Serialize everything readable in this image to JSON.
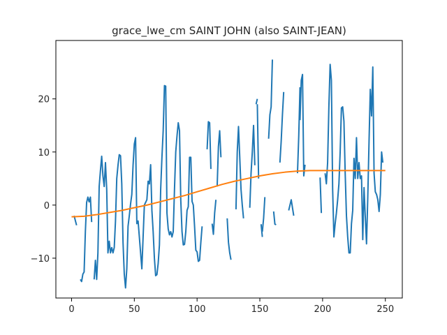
{
  "chart_data": {
    "type": "line",
    "title": "grace_lwe_cm SAINT JOHN (also SAINT-JEAN)",
    "xlabel": "",
    "ylabel": "",
    "xlim": [
      -12.5,
      263.5
    ],
    "ylim": [
      -17.5,
      31
    ],
    "xticks": [
      0,
      50,
      100,
      150,
      200,
      250
    ],
    "yticks": [
      -10,
      0,
      10,
      20
    ],
    "grid": false,
    "series": [
      {
        "color": "#1f77b4",
        "segments": [
          [
            [
              2,
              -2
            ],
            [
              4,
              -3.8
            ]
          ],
          [
            [
              7,
              -14
            ],
            [
              8,
              -14.4
            ],
            [
              9,
              -13
            ],
            [
              10,
              -12.6
            ],
            [
              11,
              -5
            ],
            [
              12,
              0.5
            ],
            [
              13,
              1.5
            ],
            [
              14,
              0.6
            ],
            [
              15,
              1.5
            ],
            [
              16,
              -3.2
            ]
          ],
          [
            [
              18,
              -14
            ],
            [
              19,
              -10.4
            ],
            [
              20,
              -14
            ],
            [
              21,
              -9
            ],
            [
              22,
              3.5
            ],
            [
              23,
              6.5
            ],
            [
              24,
              9.2
            ],
            [
              25,
              5.5
            ],
            [
              26,
              3.5
            ],
            [
              27,
              8
            ],
            [
              28,
              3
            ],
            [
              29,
              -9
            ],
            [
              30,
              -6.8
            ],
            [
              31,
              -9
            ],
            [
              32,
              -8
            ],
            [
              33,
              -9
            ],
            [
              34,
              -8
            ],
            [
              35,
              -3
            ],
            [
              36,
              5
            ],
            [
              37,
              7.5
            ],
            [
              38,
              9.5
            ],
            [
              39,
              9.3
            ],
            [
              40,
              4
            ],
            [
              41,
              -7
            ],
            [
              42,
              -13
            ],
            [
              43,
              -15.6
            ],
            [
              44,
              -12
            ],
            [
              45,
              -4
            ],
            [
              46,
              -2
            ],
            [
              47,
              0.2
            ],
            [
              48,
              2
            ],
            [
              49,
              7.5
            ],
            [
              50,
              11.5
            ],
            [
              51,
              12.7
            ],
            [
              52,
              -3.5
            ],
            [
              53,
              -3
            ],
            [
              54,
              -6
            ],
            [
              55,
              -9
            ],
            [
              56,
              -12
            ],
            [
              57,
              -6
            ],
            [
              58,
              0
            ],
            [
              59,
              0.5
            ],
            [
              60,
              1
            ],
            [
              61,
              4.5
            ],
            [
              62,
              4
            ],
            [
              63,
              7.6
            ],
            [
              64,
              -1
            ],
            [
              65,
              -5
            ],
            [
              66,
              -10
            ],
            [
              67,
              -13.3
            ],
            [
              68,
              -13.1
            ],
            [
              69,
              -11
            ],
            [
              70,
              -7.5
            ],
            [
              71,
              3
            ],
            [
              72,
              9
            ],
            [
              73,
              14
            ],
            [
              74,
              22.5
            ],
            [
              75,
              22.4
            ],
            [
              76,
              -1.5
            ],
            [
              77,
              -4.5
            ],
            [
              78,
              -5.6
            ],
            [
              79,
              -5
            ],
            [
              80,
              -6
            ],
            [
              81,
              -5
            ],
            [
              82,
              3
            ],
            [
              83,
              10
            ],
            [
              84,
              13
            ],
            [
              85,
              15.5
            ],
            [
              86,
              14
            ],
            [
              87,
              1
            ],
            [
              88,
              -5
            ],
            [
              89,
              -7.5
            ],
            [
              90,
              -7.4
            ],
            [
              91,
              -5
            ],
            [
              92,
              -1
            ],
            [
              93,
              -0.3
            ],
            [
              94,
              9
            ],
            [
              95,
              9
            ],
            [
              96,
              0.7
            ],
            [
              97,
              0
            ],
            [
              98,
              -4
            ],
            [
              99,
              -8.5
            ],
            [
              100,
              -8.8
            ],
            [
              101,
              -10.6
            ],
            [
              102,
              -10.4
            ],
            [
              103,
              -7
            ],
            [
              104,
              -4
            ]
          ],
          [
            [
              108,
              10.5
            ],
            [
              109,
              15.7
            ],
            [
              110,
              15.5
            ],
            [
              111,
              6.8
            ]
          ],
          [
            [
              112,
              -3.5
            ],
            [
              113,
              -5.5
            ],
            [
              114,
              -1.5
            ],
            [
              115,
              1
            ]
          ],
          [
            [
              116,
              3.5
            ],
            [
              117,
              11
            ],
            [
              118,
              14
            ],
            [
              119,
              9
            ]
          ],
          [
            [
              124,
              -2.5
            ],
            [
              125,
              -7
            ],
            [
              126,
              -9
            ],
            [
              127,
              -10.3
            ]
          ],
          [
            [
              131,
              -0.8
            ],
            [
              132,
              10
            ],
            [
              133,
              14.8
            ],
            [
              134,
              9
            ],
            [
              135,
              3
            ],
            [
              136,
              0
            ],
            [
              137,
              -2.5
            ]
          ],
          [
            [
              142,
              -0.5
            ],
            [
              143,
              6
            ],
            [
              144,
              10
            ],
            [
              145,
              15
            ],
            [
              146,
              7.5
            ]
          ],
          [
            [
              147,
              19
            ],
            [
              148,
              20
            ]
          ],
          [
            [
              148,
              19
            ],
            [
              149,
              5
            ]
          ],
          [
            [
              151,
              -3.6
            ],
            [
              152,
              -6
            ]
          ],
          [
            [
              152,
              -5
            ],
            [
              153,
              -2.5
            ],
            [
              154,
              1.5
            ]
          ],
          [
            [
              157,
              12.5
            ],
            [
              158,
              17
            ],
            [
              159,
              18.5
            ],
            [
              160,
              27.4
            ]
          ],
          [
            [
              161,
              -1.2
            ],
            [
              162,
              -3.6
            ],
            [
              163,
              -3.7
            ]
          ],
          [
            [
              166,
              8
            ],
            [
              167,
              12
            ],
            [
              168,
              17
            ],
            [
              169,
              21.3
            ]
          ],
          [
            [
              173,
              -1
            ],
            [
              174,
              0
            ],
            [
              175,
              1
            ],
            [
              176,
              -0.5
            ],
            [
              177,
              -2
            ]
          ],
          [
            [
              180,
              6
            ],
            [
              181,
              13
            ],
            [
              182,
              22.2
            ]
          ],
          [
            [
              182,
              16
            ],
            [
              183,
              23.5
            ],
            [
              184,
              24.6
            ],
            [
              185,
              5.5
            ],
            [
              186,
              7.6
            ]
          ],
          [
            [
              198,
              5.2
            ],
            [
              199,
              -1.5
            ]
          ],
          [
            [
              202,
              6
            ],
            [
              203,
              4
            ],
            [
              204,
              8
            ],
            [
              205,
              18.5
            ],
            [
              206,
              26.5
            ],
            [
              207,
              23.5
            ],
            [
              208,
              3
            ],
            [
              209,
              -6
            ],
            [
              210,
              -3.5
            ],
            [
              211,
              -1.5
            ],
            [
              212,
              1
            ],
            [
              213,
              4
            ],
            [
              214,
              10
            ],
            [
              215,
              18.3
            ],
            [
              216,
              18.5
            ],
            [
              217,
              15.8
            ],
            [
              218,
              6
            ],
            [
              219,
              -2
            ],
            [
              220,
              -6
            ],
            [
              221,
              -9
            ],
            [
              222,
              -9
            ],
            [
              223,
              -3.5
            ],
            [
              224,
              -1
            ],
            [
              225,
              8.8
            ],
            [
              226,
              5
            ],
            [
              227,
              12.7
            ],
            [
              228,
              5
            ],
            [
              229,
              8
            ],
            [
              230,
              5
            ],
            [
              231,
              5.5
            ],
            [
              232,
              -6.5
            ],
            [
              233,
              3.3
            ],
            [
              234,
              -2.2
            ],
            [
              235,
              -7.3
            ],
            [
              236,
              1.5
            ],
            [
              237,
              12
            ],
            [
              238,
              21.8
            ],
            [
              239,
              16.8
            ],
            [
              240,
              26
            ],
            [
              241,
              6
            ],
            [
              242,
              2.5
            ],
            [
              243,
              2
            ],
            [
              244,
              1
            ],
            [
              245,
              -1.2
            ],
            [
              246,
              2
            ],
            [
              247,
              10
            ],
            [
              248,
              8
            ]
          ]
        ]
      },
      {
        "color": "#ff7f0e",
        "x": [
          0,
          10,
          20,
          30,
          40,
          50,
          60,
          70,
          80,
          90,
          100,
          110,
          120,
          130,
          140,
          150,
          160,
          170,
          180,
          190,
          200,
          210,
          220,
          230,
          240,
          250
        ],
        "values": [
          -2.2,
          -2.1,
          -1.8,
          -1.4,
          -1.0,
          -0.5,
          0.0,
          0.6,
          1.2,
          1.8,
          2.5,
          3.2,
          3.9,
          4.5,
          5.0,
          5.5,
          5.9,
          6.2,
          6.4,
          6.5,
          6.5,
          6.5,
          6.5,
          6.5,
          6.5,
          6.5
        ]
      }
    ]
  }
}
